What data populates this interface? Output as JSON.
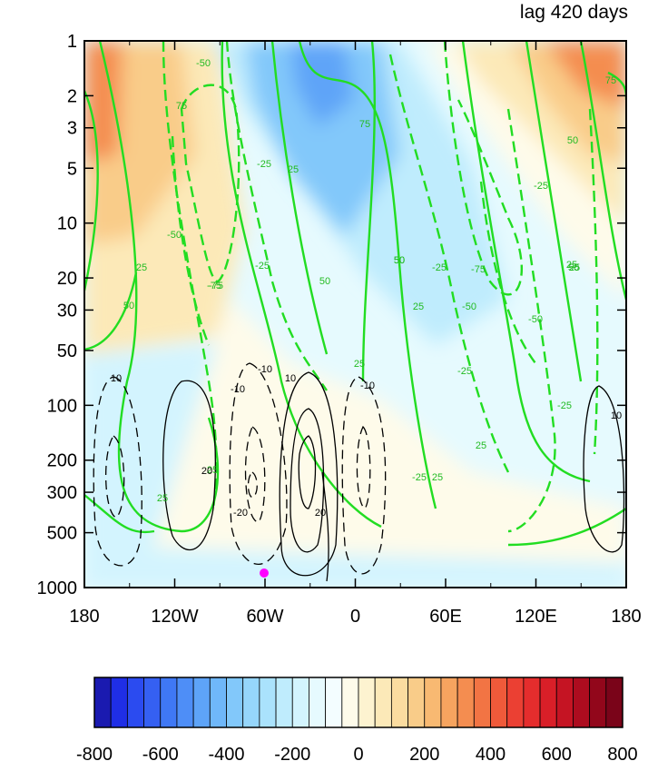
{
  "chart_data": {
    "type": "heatmap",
    "title": "lag 420 days",
    "x_tick_labels": [
      "180",
      "120W",
      "60W",
      "0",
      "60E",
      "120E",
      "180"
    ],
    "x_tick_values": [
      -180,
      -120,
      -60,
      0,
      60,
      120,
      180
    ],
    "y_scale": "log",
    "y_reversed": true,
    "y_tick_labels": [
      "1",
      "2",
      "3",
      "5",
      "10",
      "20",
      "30",
      "50",
      "100",
      "200",
      "300",
      "500",
      "1000"
    ],
    "y_tick_values": [
      1,
      2,
      3,
      5,
      10,
      20,
      30,
      50,
      100,
      200,
      300,
      500,
      1000
    ],
    "xlim": [
      -180,
      180
    ],
    "ylim": [
      1000,
      1
    ],
    "colorbar": {
      "levels": [
        -800,
        -750,
        -700,
        -650,
        -600,
        -550,
        -500,
        -450,
        -400,
        -350,
        -300,
        -250,
        -200,
        -150,
        -100,
        -50,
        0,
        50,
        100,
        150,
        200,
        250,
        300,
        350,
        400,
        450,
        500,
        550,
        600,
        650,
        700,
        750,
        800
      ],
      "tick_labels": [
        "-800",
        "-600",
        "-400",
        "-200",
        "0",
        "200",
        "400",
        "600",
        "800"
      ],
      "tick_values": [
        -800,
        -600,
        -400,
        -200,
        0,
        200,
        400,
        600,
        800
      ],
      "colors": [
        "#1a1ab0",
        "#1f2ee6",
        "#2b4bf0",
        "#3560f2",
        "#3f78f5",
        "#4e8ef7",
        "#5ea4f8",
        "#6fb7f9",
        "#82c8fa",
        "#96d6fb",
        "#aae2fc",
        "#bfecfd",
        "#d3f4fe",
        "#e6fafe",
        "#f3fdff",
        "#fefbea",
        "#fdf3d0",
        "#fce9b8",
        "#fbdca0",
        "#f9cc89",
        "#f8b972",
        "#f6a45f",
        "#f48d50",
        "#f27444",
        "#ef5a3a",
        "#eb4033",
        "#e52d2d",
        "#d91f28",
        "#c51423",
        "#ad0c1f",
        "#92071b",
        "#7a0419"
      ]
    },
    "green_contour_labels": [
      "50",
      "75",
      "-50",
      "25",
      "-75",
      "75",
      "50",
      "-25",
      "25",
      "-25",
      "50",
      "-75",
      "-50",
      "-50",
      "25",
      "25",
      "-75",
      "75",
      "-25",
      "50",
      "50",
      "25",
      "-25",
      "-25",
      "25",
      "25",
      "25",
      "-25",
      "-50",
      "25",
      "-25",
      "25",
      "50"
    ],
    "black_contour_labels": [
      "10",
      "-10",
      "10",
      "-10",
      "-20",
      "20",
      "20",
      "-10",
      "10"
    ],
    "marker": {
      "x": -60,
      "y": 920,
      "color": "#ff00ff"
    },
    "colors": {
      "positive_contour": "#22dd22",
      "negative_contour": "#22dd22",
      "anomaly_contour": "#000000"
    }
  }
}
